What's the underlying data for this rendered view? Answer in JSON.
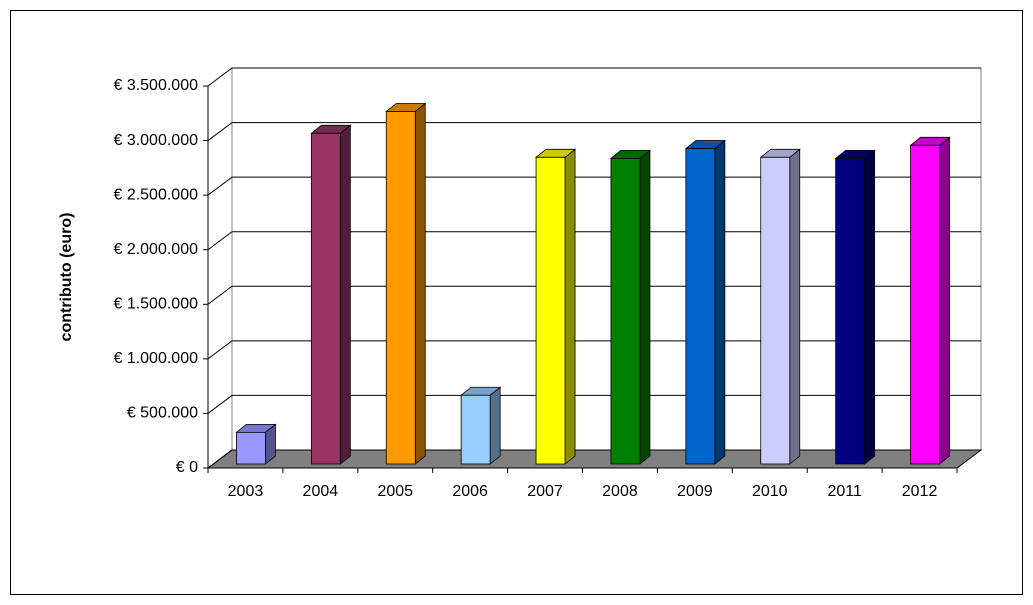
{
  "chart_data": {
    "type": "bar3d",
    "y_label": "contributo (euro)",
    "categories": [
      "2003",
      "2004",
      "2005",
      "2006",
      "2007",
      "2008",
      "2009",
      "2010",
      "2011",
      "2012"
    ],
    "values": [
      290000,
      3030000,
      3230000,
      630000,
      2810000,
      2800000,
      2890000,
      2810000,
      2800000,
      2920000
    ],
    "colors": [
      "#9999ff",
      "#993366",
      "#ff9900",
      "#99ccff",
      "#ffff00",
      "#008000",
      "#0066cc",
      "#ccccff",
      "#000080",
      "#ff00ff"
    ],
    "ylim": [
      0,
      3500000
    ],
    "yticks": [
      {
        "value": 0,
        "label": "€ 0"
      },
      {
        "value": 500000,
        "label": "€ 500.000"
      },
      {
        "value": 1000000,
        "label": "€ 1.000.000"
      },
      {
        "value": 1500000,
        "label": "€ 1.500.000"
      },
      {
        "value": 2000000,
        "label": "€ 2.000.000"
      },
      {
        "value": 2500000,
        "label": "€ 2.500.000"
      },
      {
        "value": 3000000,
        "label": "€ 3.000.000"
      },
      {
        "value": 3500000,
        "label": "€ 3.500.000"
      }
    ],
    "grid": true
  }
}
